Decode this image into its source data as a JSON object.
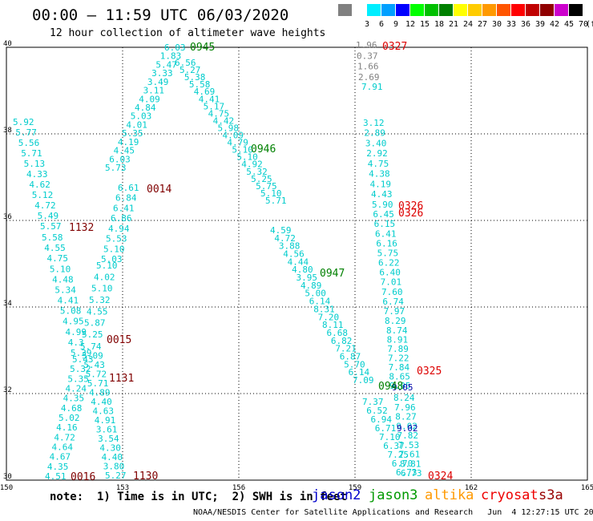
{
  "header": {
    "title": "00:00 – 11:59 UTC 06/03/2020",
    "subtitle": "12 hour collection of altimeter wave heights"
  },
  "color_scale": {
    "swatches": [
      {
        "label": "",
        "color": "#808080"
      },
      {
        "label": "3",
        "color": "#ffffff"
      },
      {
        "label": "6",
        "color": "#00eeff"
      },
      {
        "label": "9",
        "color": "#00a0ff"
      },
      {
        "label": "12",
        "color": "#0000ff"
      },
      {
        "label": "15",
        "color": "#00ff00"
      },
      {
        "label": "18",
        "color": "#00c000"
      },
      {
        "label": "21",
        "color": "#008000"
      },
      {
        "label": "24",
        "color": "#ffff00"
      },
      {
        "label": "27",
        "color": "#ffcc00"
      },
      {
        "label": "30",
        "color": "#ff9900"
      },
      {
        "label": "33",
        "color": "#ff5500"
      },
      {
        "label": "36",
        "color": "#ff0000"
      },
      {
        "label": "39",
        "color": "#c00000"
      },
      {
        "label": "42",
        "color": "#900000"
      },
      {
        "label": "45",
        "color": "#cc00cc"
      },
      {
        "label": "70",
        "color": "#000000"
      }
    ],
    "unit": "(ft)"
  },
  "map": {
    "lat_labels": [
      "40",
      "38",
      "36",
      "34",
      "32",
      "30"
    ],
    "lon_labels": [
      "150",
      "153",
      "156",
      "159",
      "162",
      "165"
    ],
    "lat_range": [
      30,
      40
    ],
    "lon_range": [
      150,
      165
    ]
  },
  "tracks": {
    "time_labels": [
      {
        "text": "0945",
        "color": "#008000"
      },
      {
        "text": "0946",
        "color": "#008000"
      },
      {
        "text": "0947",
        "color": "#008000"
      },
      {
        "text": "0948",
        "color": "#008000"
      },
      {
        "text": "0014",
        "color": "#800000"
      },
      {
        "text": "0015",
        "color": "#800000"
      },
      {
        "text": "0016",
        "color": "#800000"
      },
      {
        "text": "1130",
        "color": "#800000"
      },
      {
        "text": "1131",
        "color": "#800000"
      },
      {
        "text": "1132",
        "color": "#800000"
      },
      {
        "text": "0324",
        "color": "#dd0000"
      },
      {
        "text": "0325",
        "color": "#dd0000"
      },
      {
        "text": "0326",
        "color": "#dd0000"
      },
      {
        "text": "0326",
        "color": "#dd0000"
      },
      {
        "text": "0327",
        "color": "#dd0000"
      }
    ],
    "wave_heights": {
      "track_a": [
        "5.92",
        "5.77",
        "5.56",
        "5.71",
        "5.13",
        "4.33",
        "4.62",
        "5.12",
        "4.72",
        "5.49",
        "5.57",
        "5.58",
        "4.55",
        "4.75",
        "5.10",
        "4.48",
        "5.34",
        "4.41",
        "5.08",
        "4.95",
        "4.99",
        "4.3",
        "5.39",
        "5.43",
        "5.32",
        "5.35",
        "4.24",
        "4.35",
        "4.68",
        "5.02",
        "4.16",
        "4.72",
        "4.64",
        "4.67",
        "4.35",
        "4.51"
      ],
      "track_b": [
        "6.03",
        "1.83",
        "5.47",
        "3.33",
        "3.49",
        "3.11",
        "4.09",
        "4.84",
        "5.03",
        "4.01",
        "5.35",
        "4.19",
        "4.45",
        "6.03",
        "5.73",
        "6.61",
        "6.84",
        "6.41",
        "6.86",
        "4.94",
        "5.53",
        "5.10",
        "5.03",
        "5.10",
        "4.02",
        "5.10",
        "5.32",
        "4.55",
        "5.87",
        "5.25",
        "5.74",
        "5.09",
        "5.43",
        "5.72",
        "5.71",
        "4.89",
        "4.40",
        "4.63",
        "4.91",
        "3.61",
        "3.54",
        "4.30",
        "4.40",
        "3.80",
        "5.27"
      ],
      "track_c": [
        "6.56",
        "5.27",
        "5.38",
        "5.58",
        "4.69",
        "4.41",
        "5.17",
        "4.75",
        "4.42",
        "5.98",
        "4.09",
        "4.79",
        "5.10",
        "5.10",
        "4.92",
        "5.32",
        "5.25",
        "5.75",
        "5.10",
        "5.71",
        "4.59",
        "4.72",
        "3.88",
        "4.56",
        "4.44",
        "4.80",
        "3.95",
        "4.89",
        "5.00",
        "6.14",
        "8.31",
        "7.20",
        "8.11",
        "6.68",
        "6.82",
        "7.21",
        "6.87",
        "5.70",
        "6.14",
        "7.09",
        "7.37",
        "6.52",
        "6.94",
        "6.71",
        "7.10",
        "6.37",
        "7.25",
        "6.70",
        "6.73"
      ],
      "track_d_gray": [
        "1.96",
        "0.37",
        "1.66",
        "2.69"
      ],
      "track_d": [
        "7.91",
        "3.12",
        "2.89",
        "3.40",
        "2.92",
        "4.75",
        "4.38",
        "4.19",
        "4.43",
        "5.90",
        "6.45",
        "6.15",
        "6.41",
        "6.16",
        "5.75",
        "6.22",
        "6.40",
        "7.01",
        "7.60",
        "6.74",
        "7.97",
        "8.29",
        "8.74",
        "8.91",
        "7.89",
        "7.22",
        "7.84",
        "8.65",
        "9.05",
        "8.24",
        "7.96",
        "8.27",
        "9.02",
        "7.82",
        "7.53",
        "7.61",
        "8.81",
        "6.73"
      ]
    }
  },
  "legend": {
    "note": "note:  1) Time is in UTC;  2) SWH is in feet",
    "satellites": [
      {
        "name": "jason2",
        "color": "#0000cc"
      },
      {
        "name": "jason3",
        "color": "#009900"
      },
      {
        "name": "altika",
        "color": "#ff9900"
      },
      {
        "name": "cryosat",
        "color": "#ee0000"
      },
      {
        "name": "s3a",
        "color": "#990000"
      }
    ]
  },
  "credit": "NOAA/NESDIS Center for Satellite Applications and Research   Jun  4 12:27:15 UTC 2020"
}
